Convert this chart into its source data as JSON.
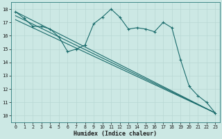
{
  "xlabel": "Humidex (Indice chaleur)",
  "xlim": [
    -0.5,
    23.5
  ],
  "ylim": [
    9.5,
    18.5
  ],
  "xticks": [
    0,
    1,
    2,
    3,
    4,
    5,
    6,
    7,
    8,
    9,
    10,
    11,
    12,
    13,
    14,
    15,
    16,
    17,
    18,
    19,
    20,
    21,
    22,
    23
  ],
  "yticks": [
    10,
    11,
    12,
    13,
    14,
    15,
    16,
    17,
    18
  ],
  "bg_color": "#cce8e4",
  "line_color": "#1a6b6b",
  "grid_color": "#b8d8d4",
  "line1_x": [
    0,
    1,
    2,
    3,
    4,
    5,
    6,
    7,
    8,
    9,
    10,
    11,
    12,
    13,
    14,
    15,
    16,
    17,
    18,
    19,
    20,
    21,
    22,
    23
  ],
  "line1_y": [
    17.8,
    17.3,
    16.7,
    16.7,
    16.5,
    15.9,
    14.8,
    15.0,
    15.3,
    16.9,
    17.4,
    18.0,
    17.4,
    16.5,
    16.6,
    16.5,
    16.3,
    17.0,
    16.6,
    14.2,
    12.2,
    11.5,
    11.0,
    10.2
  ],
  "line2_x": [
    0,
    23
  ],
  "line2_y": [
    17.8,
    10.2
  ],
  "line3_x": [
    0,
    23
  ],
  "line3_y": [
    17.5,
    10.2
  ],
  "line4_x": [
    0,
    23
  ],
  "line4_y": [
    17.2,
    10.2
  ]
}
